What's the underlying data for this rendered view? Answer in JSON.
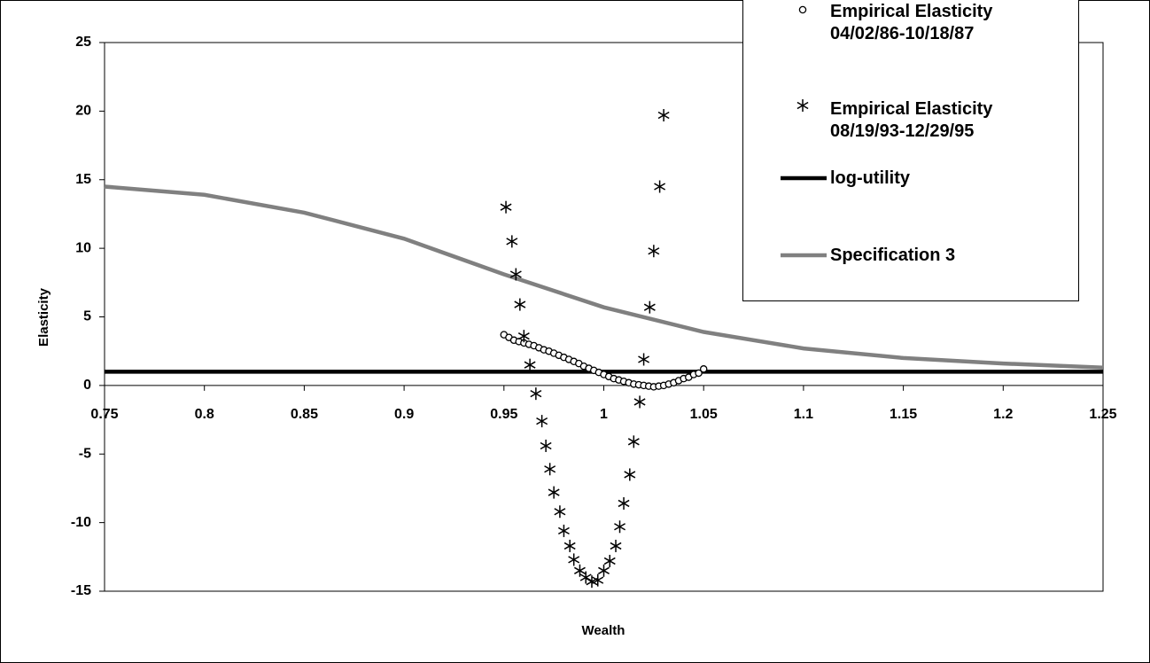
{
  "chart_data": {
    "type": "scatter",
    "xlabel": "Wealth",
    "ylabel": "Elasticity",
    "xlim": [
      0.75,
      1.25
    ],
    "ylim": [
      -15,
      25
    ],
    "xticks": [
      0.75,
      0.8,
      0.85,
      0.9,
      0.95,
      1,
      1.05,
      1.1,
      1.15,
      1.2,
      1.25
    ],
    "yticks": [
      -15,
      -10,
      -5,
      0,
      5,
      10,
      15,
      20,
      25
    ],
    "grid": false,
    "legend": "upper right",
    "series": [
      {
        "name": "Empirical Elasticity 04/02/86-10/18/87",
        "marker": "circle",
        "color": "#000000",
        "x": [
          0.95,
          0.9525,
          0.955,
          0.9575,
          0.96,
          0.9625,
          0.965,
          0.9675,
          0.97,
          0.9725,
          0.975,
          0.9775,
          0.98,
          0.9825,
          0.985,
          0.9875,
          0.99,
          0.9925,
          0.995,
          0.9975,
          1.0,
          1.0025,
          1.005,
          1.0075,
          1.01,
          1.0125,
          1.015,
          1.0175,
          1.02,
          1.0225,
          1.025,
          1.0275,
          1.03,
          1.0325,
          1.035,
          1.0375,
          1.04,
          1.0425,
          1.045,
          1.0475,
          1.05
        ],
        "values": [
          3.7,
          3.5,
          3.3,
          3.2,
          3.1,
          3.0,
          2.9,
          2.75,
          2.6,
          2.5,
          2.35,
          2.2,
          2.05,
          1.9,
          1.75,
          1.6,
          1.4,
          1.25,
          1.1,
          0.95,
          0.8,
          0.65,
          0.5,
          0.4,
          0.3,
          0.2,
          0.1,
          0.05,
          0,
          -0.05,
          -0.1,
          -0.05,
          0,
          0.1,
          0.2,
          0.35,
          0.5,
          0.6,
          0.8,
          0.9,
          1.2
        ]
      },
      {
        "name": "Empirical Elasticity 08/19/93-12/29/95",
        "marker": "asterisk",
        "color": "#000000",
        "x": [
          0.951,
          0.954,
          0.956,
          0.958,
          0.96,
          0.963,
          0.966,
          0.969,
          0.971,
          0.973,
          0.975,
          0.978,
          0.98,
          0.983,
          0.985,
          0.988,
          0.991,
          0.994,
          0.997,
          1.0,
          1.003,
          1.006,
          1.008,
          1.01,
          1.013,
          1.015,
          1.018,
          1.02,
          1.023,
          1.025,
          1.028,
          1.03
        ],
        "values": [
          13.0,
          10.5,
          8.1,
          5.9,
          3.6,
          1.5,
          -0.6,
          -2.6,
          -4.4,
          -6.1,
          -7.8,
          -9.2,
          -10.6,
          -11.7,
          -12.7,
          -13.5,
          -14.0,
          -14.3,
          -14.2,
          -13.5,
          -12.8,
          -11.7,
          -10.3,
          -8.6,
          -6.5,
          -4.1,
          -1.2,
          1.9,
          5.7,
          9.8,
          14.5,
          19.7
        ]
      },
      {
        "name": "log-utility",
        "marker": "line",
        "color": "#000000",
        "x": [
          0.75,
          1.25
        ],
        "values": [
          1,
          1
        ]
      },
      {
        "name": "Specification 3",
        "marker": "line",
        "color": "#808080",
        "x": [
          0.75,
          0.8,
          0.85,
          0.9,
          0.95,
          1.0,
          1.05,
          1.1,
          1.15,
          1.2,
          1.25
        ],
        "values": [
          14.5,
          13.9,
          12.6,
          10.7,
          8.1,
          5.7,
          3.9,
          2.7,
          2.0,
          1.6,
          1.3
        ]
      }
    ]
  }
}
